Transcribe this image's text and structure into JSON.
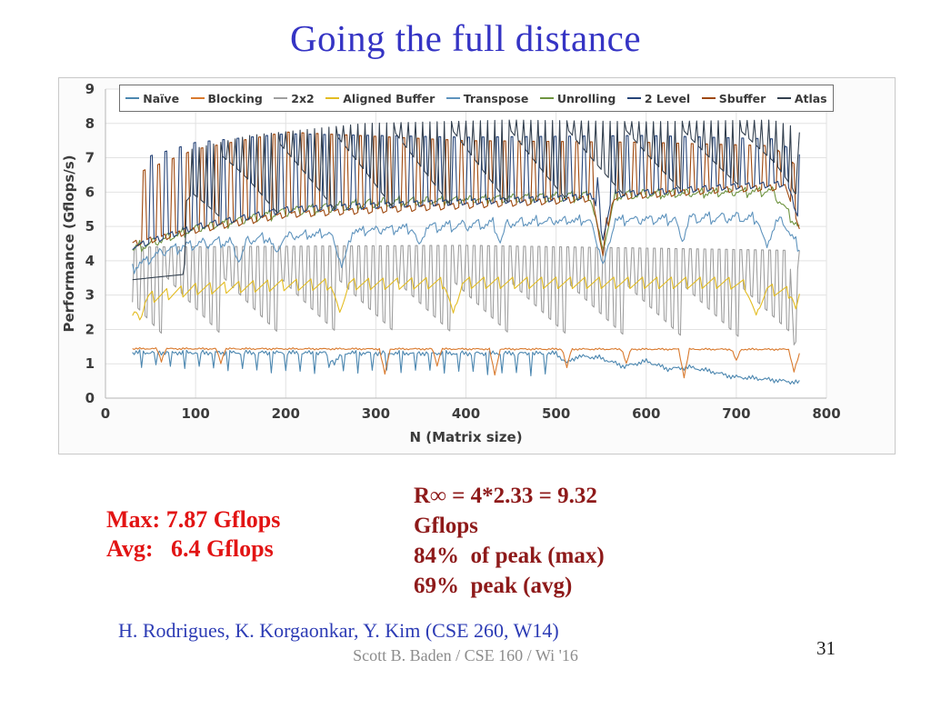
{
  "slide": {
    "title": "Going the full distance",
    "page_number": "31",
    "credit": "H. Rodrigues, K. Korgaonkar, Y. Kim (CSE 260, W14)",
    "footer": "Scott B. Baden / CSE 160 / Wi '16"
  },
  "stats_measured": {
    "lines": [
      "Max: 7.87 Gflops",
      "Avg:   6.4 Gflops"
    ],
    "color": "#e21414"
  },
  "stats_peak": {
    "lines": [
      "R∞ = 4*2.33 = 9.32",
      "Gflops",
      "84%  of peak (max)",
      "69%  peak (avg)"
    ],
    "color": "#8e1a1a"
  },
  "chart_data": {
    "type": "line",
    "title": "",
    "xlabel": "N (Matrix size)",
    "ylabel": "Performance (Gflops/s)",
    "xlim": [
      0,
      800
    ],
    "ylim": [
      0,
      9
    ],
    "xticks": [
      0,
      100,
      200,
      300,
      400,
      500,
      600,
      700,
      800
    ],
    "yticks": [
      0,
      1,
      2,
      3,
      4,
      5,
      6,
      7,
      8,
      9
    ],
    "grid": true,
    "legend_position": "top",
    "sampling": {
      "start": 30,
      "end": 770,
      "step": 2
    },
    "series": [
      {
        "name": "Naïve",
        "slug": "naive",
        "color": "#4c87b0",
        "z": 2,
        "gen": {
          "base": [
            [
              30,
              1.33
            ],
            [
              500,
              1.3
            ],
            [
              512,
              1.02
            ],
            [
              524,
              1.22
            ],
            [
              548,
              1.18
            ],
            [
              576,
              0.92
            ],
            [
              600,
              1.08
            ],
            [
              624,
              0.85
            ],
            [
              648,
              0.9
            ],
            [
              672,
              0.78
            ],
            [
              696,
              0.62
            ],
            [
              720,
              0.58
            ],
            [
              744,
              0.52
            ],
            [
              770,
              0.45
            ]
          ],
          "noise": 0.05,
          "spikes": {
            "period": 16,
            "offset": 8,
            "width": 2,
            "until": 495,
            "peaks": [
              [
                30,
                0.92
              ],
              [
                200,
                0.8
              ],
              [
                490,
                0.72
              ]
            ]
          },
          "dips": [
            [
              254,
              1.02,
              10
            ]
          ]
        }
      },
      {
        "name": "Blocking",
        "slug": "blocking",
        "color": "#d97a2e",
        "z": 3,
        "gen": {
          "base": [
            [
              30,
              1.44
            ],
            [
              758,
              1.42
            ],
            [
              764,
              0.78
            ],
            [
              770,
              1.28
            ]
          ],
          "noise": 0.02,
          "dips": [
            [
              62,
              1.08,
              5
            ],
            [
              128,
              1.02,
              5
            ],
            [
              310,
              0.7,
              6
            ],
            [
              368,
              0.95,
              5
            ],
            [
              432,
              0.68,
              6
            ],
            [
              512,
              0.88,
              5
            ],
            [
              578,
              1.0,
              5
            ],
            [
              642,
              0.62,
              6
            ],
            [
              700,
              1.08,
              5
            ]
          ]
        }
      },
      {
        "name": "2x2",
        "slug": "2x2",
        "color": "#9f9f9f",
        "z": 1,
        "gen": {
          "base": [
            [
              30,
              1.82
            ],
            [
              300,
              1.95
            ],
            [
              770,
              1.72
            ]
          ],
          "comb": {
            "envPeriod": 64,
            "env": [
              [
                30,
                3.65
              ],
              [
                300,
                3.5
              ],
              [
                770,
                3.25
              ]
            ],
            "period": 8,
            "width": 3,
            "tops": [
              [
                30,
                4.4
              ],
              [
                400,
                4.45
              ],
              [
                770,
                4.3
              ]
            ]
          },
          "dips": [
            [
              764,
              1.55,
              5
            ]
          ]
        }
      },
      {
        "name": "Aligned Buffer",
        "slug": "aligned-buffer",
        "color": "#e3bc22",
        "z": 4,
        "gen": {
          "base": [
            [
              30,
              2.4
            ],
            [
              48,
              2.95
            ],
            [
              100,
              3.2
            ],
            [
              200,
              3.32
            ],
            [
              400,
              3.38
            ],
            [
              690,
              3.38
            ],
            [
              770,
              3.05
            ]
          ],
          "saw": {
            "period": 16,
            "amp": 0.38,
            "offset": 6
          },
          "dips": [
            [
              38,
              2.28,
              6
            ],
            [
              260,
              2.5,
              10
            ],
            [
              386,
              2.48,
              10
            ],
            [
              722,
              2.42,
              12
            ],
            [
              766,
              2.6,
              5
            ]
          ]
        }
      },
      {
        "name": "Transpose",
        "slug": "transpose",
        "color": "#5e93bd",
        "z": 5,
        "gen": {
          "base": [
            [
              30,
              3.8
            ],
            [
              64,
              4.3
            ],
            [
              100,
              4.5
            ],
            [
              200,
              4.72
            ],
            [
              300,
              4.92
            ],
            [
              400,
              5.05
            ],
            [
              500,
              5.18
            ],
            [
              600,
              5.22
            ],
            [
              700,
              5.28
            ],
            [
              752,
              5.15
            ],
            [
              770,
              4.35
            ]
          ],
          "saw": {
            "period": 16,
            "amp": 0.28,
            "offset": 0
          },
          "noise": 0.05,
          "dips": [
            [
              148,
              3.98,
              10
            ],
            [
              190,
              4.2,
              8
            ],
            [
              262,
              3.82,
              12
            ],
            [
              348,
              4.45,
              8
            ],
            [
              438,
              4.55,
              8
            ],
            [
              552,
              3.88,
              14
            ],
            [
              640,
              4.55,
              8
            ],
            [
              734,
              4.38,
              10
            ]
          ]
        }
      },
      {
        "name": "Unrolling",
        "slug": "unrolling",
        "color": "#6f9440",
        "z": 6,
        "gen": {
          "base": [
            [
              30,
              4.35
            ],
            [
              100,
              4.95
            ],
            [
              200,
              5.45
            ],
            [
              300,
              5.7
            ],
            [
              450,
              5.85
            ],
            [
              600,
              5.95
            ],
            [
              740,
              6.05
            ],
            [
              770,
              4.95
            ]
          ],
          "saw": {
            "period": 16,
            "amp": 0.3,
            "offset": 8
          },
          "noise": 0.04,
          "dips": [
            [
              552,
              4.3,
              14
            ]
          ]
        }
      },
      {
        "name": "2 Level",
        "slug": "2-level",
        "color": "#264478",
        "z": 8,
        "gen": {
          "base": [
            [
              30,
              4.4
            ],
            [
              100,
              5.0
            ],
            [
              200,
              5.5
            ],
            [
              350,
              5.68
            ],
            [
              500,
              5.82
            ],
            [
              700,
              6.18
            ],
            [
              756,
              6.25
            ],
            [
              770,
              5.2
            ]
          ],
          "saw": {
            "period": 16,
            "amp": 0.2,
            "offset": 12
          },
          "spikes": {
            "period": 16,
            "offset": 2,
            "width": 3,
            "from": 40,
            "peaks": [
              [
                30,
                6.9
              ],
              [
                100,
                7.45
              ],
              [
                200,
                7.7
              ],
              [
                400,
                7.6
              ],
              [
                600,
                7.65
              ],
              [
                740,
                7.55
              ],
              [
                770,
                7.1
              ]
            ]
          },
          "dips": [
            [
              552,
              4.6,
              10
            ]
          ]
        }
      },
      {
        "name": "Sbuffer",
        "slug": "sbuffer",
        "color": "#9e480e",
        "z": 7,
        "gen": {
          "base": [
            [
              30,
              4.5
            ],
            [
              100,
              4.9
            ],
            [
              200,
              5.35
            ],
            [
              350,
              5.55
            ],
            [
              500,
              5.75
            ],
            [
              700,
              6.1
            ],
            [
              756,
              6.15
            ],
            [
              770,
              4.85
            ]
          ],
          "saw": {
            "period": 16,
            "amp": 0.2,
            "offset": 4
          },
          "spikes": {
            "period": 16,
            "offset": 10,
            "width": 3,
            "from": 34,
            "peaks": [
              [
                30,
                6.5
              ],
              [
                100,
                7.25
              ],
              [
                200,
                7.75
              ],
              [
                400,
                7.5
              ],
              [
                600,
                7.45
              ],
              [
                740,
                7.35
              ],
              [
                770,
                6.7
              ]
            ]
          },
          "dips": [
            [
              552,
              4.15,
              12
            ]
          ]
        }
      },
      {
        "name": "Atlas",
        "slug": "atlas",
        "color": "#33404f",
        "z": 9,
        "gen": {
          "base": [
            [
              30,
              3.45
            ],
            [
              86,
              3.6
            ],
            [
              96,
              5.15
            ],
            [
              128,
              5.25
            ],
            [
              256,
              5.45
            ],
            [
              450,
              5.65
            ],
            [
              600,
              5.95
            ],
            [
              740,
              6.25
            ],
            [
              770,
              5.85
            ]
          ],
          "decay": {
            "period": 64,
            "offset": 0,
            "from": 90,
            "peaks": [
              [
                96,
                6.8
              ],
              [
                160,
                7.35
              ],
              [
                288,
                7.75
              ],
              [
                400,
                7.85
              ],
              [
                600,
                7.85
              ],
              [
                740,
                7.8
              ]
            ]
          },
          "spikes": {
            "period": 8,
            "offset": 0,
            "width": 2,
            "from": 94,
            "peaks": [
              [
                96,
                7.25
              ],
              [
                160,
                7.65
              ],
              [
                288,
                8.0
              ],
              [
                450,
                8.1
              ],
              [
                600,
                8.05
              ],
              [
                740,
                8.1
              ],
              [
                770,
                7.85
              ]
            ]
          },
          "dips": [
            [
              766,
              5.95,
              4
            ]
          ]
        }
      }
    ]
  }
}
